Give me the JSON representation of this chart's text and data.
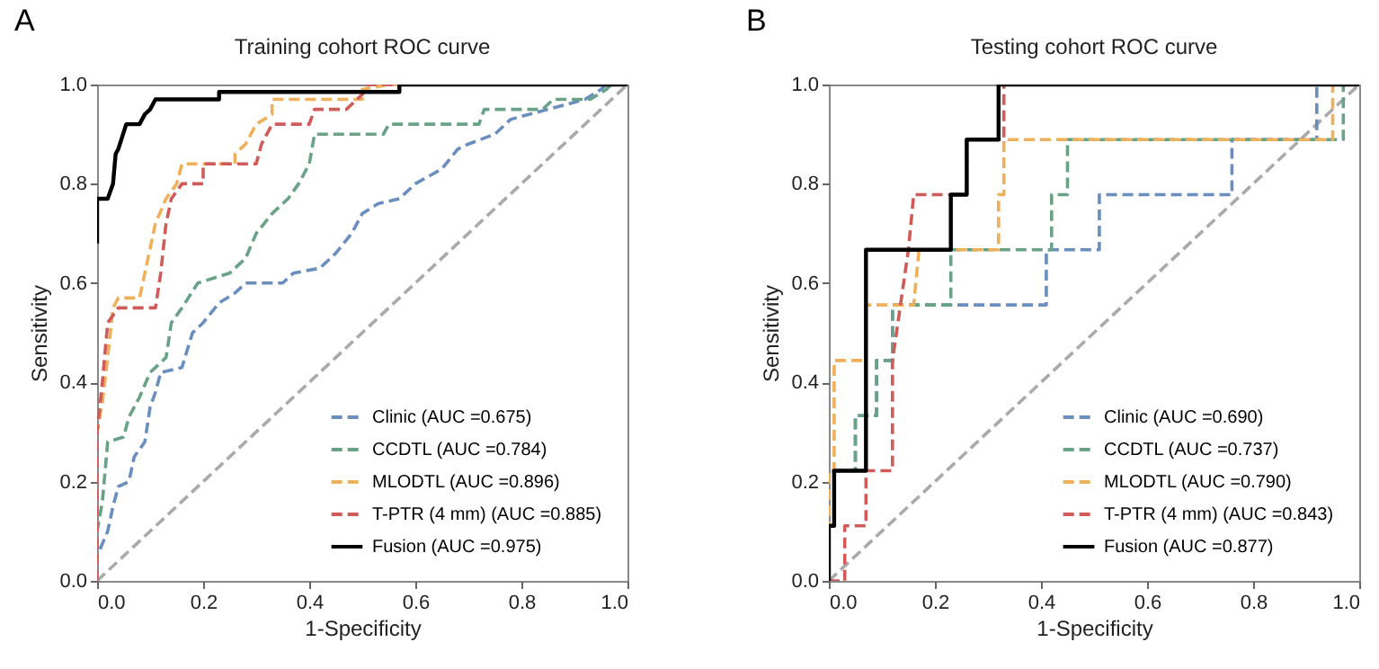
{
  "chart_data": [
    {
      "type": "line",
      "title": "Training cohort ROC curve",
      "xlabel": "1-Specificity",
      "ylabel": "Sensitivity",
      "annotations": [
        "A"
      ],
      "xlim": [
        0,
        1
      ],
      "ylim": [
        0,
        1
      ],
      "xticks": [
        {
          "value": 0,
          "label": "0.0"
        },
        {
          "value": 0.2,
          "label": "0.2"
        },
        {
          "value": 0.4,
          "label": "0.4"
        },
        {
          "value": 0.6,
          "label": "0.6"
        },
        {
          "value": 0.8,
          "label": "0.8"
        },
        {
          "value": 1,
          "label": "1.0"
        }
      ],
      "yticks": [
        {
          "value": 0,
          "label": "0.0"
        },
        {
          "value": 0.2,
          "label": "0.2"
        },
        {
          "value": 0.4,
          "label": "0.4"
        },
        {
          "value": 0.6,
          "label": "0.6"
        },
        {
          "value": 0.8,
          "label": "0.8"
        },
        {
          "value": 1,
          "label": "1.0"
        }
      ],
      "legend": "bottom right",
      "grid": false,
      "marker": "none",
      "series": [
        {
          "color": "#aaaaaa",
          "line_style": "dashed",
          "x": [
            0,
            1
          ],
          "values": [
            0,
            1
          ]
        },
        {
          "name": "Clinic (AUC =0.675)",
          "color": "#6a8fbf",
          "line_style": "dashed",
          "x": [
            0,
            0,
            0.02,
            0.03,
            0.04,
            0.06,
            0.07,
            0.09,
            0.1,
            0.11,
            0.12,
            0.16,
            0.18,
            0.2,
            0.23,
            0.26,
            0.28,
            0.35,
            0.37,
            0.42,
            0.45,
            0.48,
            0.5,
            0.53,
            0.57,
            0.6,
            0.65,
            0.68,
            0.7,
            0.75,
            0.78,
            0.85,
            0.92,
            0.95,
            0.96,
            1
          ],
          "values": [
            0,
            0.05,
            0.1,
            0.15,
            0.19,
            0.2,
            0.25,
            0.28,
            0.35,
            0.38,
            0.42,
            0.43,
            0.5,
            0.52,
            0.56,
            0.58,
            0.6,
            0.6,
            0.62,
            0.63,
            0.66,
            0.7,
            0.74,
            0.76,
            0.77,
            0.8,
            0.83,
            0.87,
            0.88,
            0.9,
            0.93,
            0.95,
            0.97,
            0.99,
            1,
            1
          ]
        },
        {
          "name": "CCDTL (AUC =0.784)",
          "color": "#6aa287",
          "line_style": "dashed",
          "x": [
            0,
            0,
            0.01,
            0.02,
            0.05,
            0.06,
            0.08,
            0.1,
            0.13,
            0.14,
            0.16,
            0.19,
            0.25,
            0.28,
            0.3,
            0.33,
            0.36,
            0.38,
            0.4,
            0.41,
            0.54,
            0.55,
            0.72,
            0.73,
            0.84,
            0.86,
            0.93,
            0.96,
            0.97,
            1
          ],
          "values": [
            0,
            0.1,
            0.16,
            0.28,
            0.29,
            0.33,
            0.37,
            0.42,
            0.45,
            0.52,
            0.55,
            0.6,
            0.62,
            0.65,
            0.7,
            0.74,
            0.77,
            0.8,
            0.84,
            0.9,
            0.9,
            0.92,
            0.92,
            0.95,
            0.95,
            0.97,
            0.97,
            0.99,
            1,
            1
          ]
        },
        {
          "name": "MLODTL (AUC =0.896)",
          "color": "#f0b05a",
          "line_style": "dashed",
          "x": [
            0,
            0,
            0.01,
            0.02,
            0.03,
            0.04,
            0.08,
            0.09,
            0.1,
            0.11,
            0.13,
            0.15,
            0.16,
            0.26,
            0.26,
            0.28,
            0.3,
            0.33,
            0.33,
            0.5,
            0.5,
            0.55,
            1
          ],
          "values": [
            0,
            0.3,
            0.36,
            0.45,
            0.55,
            0.57,
            0.57,
            0.62,
            0.67,
            0.72,
            0.77,
            0.8,
            0.84,
            0.84,
            0.86,
            0.88,
            0.92,
            0.94,
            0.97,
            0.97,
            0.99,
            1,
            1
          ]
        },
        {
          "name": "T-PTR (4 mm) (AUC =0.885)",
          "color": "#cf5b5b",
          "line_style": "dashed",
          "x": [
            0,
            0,
            0.01,
            0.02,
            0.04,
            0.11,
            0.12,
            0.13,
            0.14,
            0.16,
            0.2,
            0.2,
            0.3,
            0.31,
            0.33,
            0.4,
            0.41,
            0.47,
            0.5,
            0.51,
            1
          ],
          "values": [
            0,
            0.3,
            0.4,
            0.52,
            0.55,
            0.55,
            0.62,
            0.72,
            0.77,
            0.8,
            0.8,
            0.84,
            0.84,
            0.88,
            0.92,
            0.92,
            0.95,
            0.95,
            0.98,
            1,
            1
          ]
        },
        {
          "name": "Fusion (AUC =0.975)",
          "color": "#000000",
          "line_style": "solid",
          "x": [
            0,
            0,
            0.02,
            0.03,
            0.035,
            0.04,
            0.055,
            0.08,
            0.09,
            0.1,
            0.11,
            0.23,
            0.23,
            0.57,
            0.57,
            1
          ],
          "values": [
            0.68,
            0.77,
            0.77,
            0.8,
            0.86,
            0.87,
            0.92,
            0.92,
            0.94,
            0.95,
            0.97,
            0.97,
            0.985,
            0.985,
            1,
            1
          ]
        }
      ]
    },
    {
      "type": "line",
      "title": "Testing cohort ROC curve",
      "xlabel": "1-Specificity",
      "ylabel": "Sensitivity",
      "annotations": [
        "B"
      ],
      "xlim": [
        0,
        1
      ],
      "ylim": [
        0,
        1
      ],
      "xticks": [
        {
          "value": 0,
          "label": "0.0"
        },
        {
          "value": 0.2,
          "label": "0.2"
        },
        {
          "value": 0.4,
          "label": "0.4"
        },
        {
          "value": 0.6,
          "label": "0.6"
        },
        {
          "value": 0.8,
          "label": "0.8"
        },
        {
          "value": 1,
          "label": "1.0"
        }
      ],
      "yticks": [
        {
          "value": 0,
          "label": "0.0"
        },
        {
          "value": 0.2,
          "label": "0.2"
        },
        {
          "value": 0.4,
          "label": "0.4"
        },
        {
          "value": 0.6,
          "label": "0.6"
        },
        {
          "value": 0.8,
          "label": "0.8"
        },
        {
          "value": 1,
          "label": "1.0"
        }
      ],
      "legend": "bottom right",
      "grid": false,
      "marker": "none",
      "series": [
        {
          "color": "#aaaaaa",
          "line_style": "dashed",
          "x": [
            0,
            1
          ],
          "values": [
            0,
            1
          ]
        },
        {
          "name": "Clinic (AUC =0.690)",
          "color": "#6a8fbf",
          "line_style": "dashed",
          "x": [
            0,
            0,
            0.05,
            0.05,
            0.09,
            0.09,
            0.12,
            0.12,
            0.41,
            0.41,
            0.51,
            0.51,
            0.76,
            0.76,
            0.92,
            0.92,
            1
          ],
          "values": [
            0,
            0.222,
            0.222,
            0.333,
            0.333,
            0.444,
            0.444,
            0.556,
            0.556,
            0.667,
            0.667,
            0.778,
            0.778,
            0.889,
            0.889,
            1,
            1
          ]
        },
        {
          "name": "CCDTL (AUC =0.737)",
          "color": "#6aa287",
          "line_style": "dashed",
          "x": [
            0,
            0,
            0.05,
            0.05,
            0.09,
            0.09,
            0.12,
            0.12,
            0.23,
            0.23,
            0.42,
            0.42,
            0.45,
            0.45,
            0.97,
            0.97,
            1
          ],
          "values": [
            0,
            0.222,
            0.222,
            0.333,
            0.333,
            0.444,
            0.444,
            0.556,
            0.556,
            0.667,
            0.667,
            0.778,
            0.778,
            0.889,
            0.889,
            1,
            1
          ]
        },
        {
          "name": "MLODTL (AUC =0.790)",
          "color": "#f0b05a",
          "line_style": "dashed",
          "x": [
            0,
            0,
            0.01,
            0.01,
            0.07,
            0.07,
            0.16,
            0.17,
            0.32,
            0.32,
            0.33,
            0.33,
            0.95,
            0.95,
            1
          ],
          "values": [
            0,
            0.222,
            0.222,
            0.444,
            0.444,
            0.556,
            0.556,
            0.667,
            0.667,
            0.778,
            0.778,
            0.889,
            0.889,
            1,
            1
          ]
        },
        {
          "name": "T-PTR (4 mm) (AUC =0.843)",
          "color": "#cf5b5b",
          "line_style": "dashed",
          "x": [
            0,
            0.03,
            0.03,
            0.07,
            0.07,
            0.12,
            0.12,
            0.15,
            0.16,
            0.26,
            0.26,
            0.33,
            0.33,
            1
          ],
          "values": [
            0,
            0,
            0.111,
            0.111,
            0.222,
            0.222,
            0.444,
            0.667,
            0.778,
            0.778,
            0.889,
            0.889,
            1,
            1
          ]
        },
        {
          "name": "Fusion (AUC =0.877)",
          "color": "#000000",
          "line_style": "solid",
          "x": [
            0,
            0,
            0.01,
            0.01,
            0.07,
            0.07,
            0.23,
            0.23,
            0.26,
            0.26,
            0.32,
            0.32,
            1
          ],
          "values": [
            0,
            0.111,
            0.111,
            0.222,
            0.222,
            0.667,
            0.667,
            0.778,
            0.778,
            0.889,
            0.889,
            1,
            1
          ]
        }
      ]
    }
  ]
}
